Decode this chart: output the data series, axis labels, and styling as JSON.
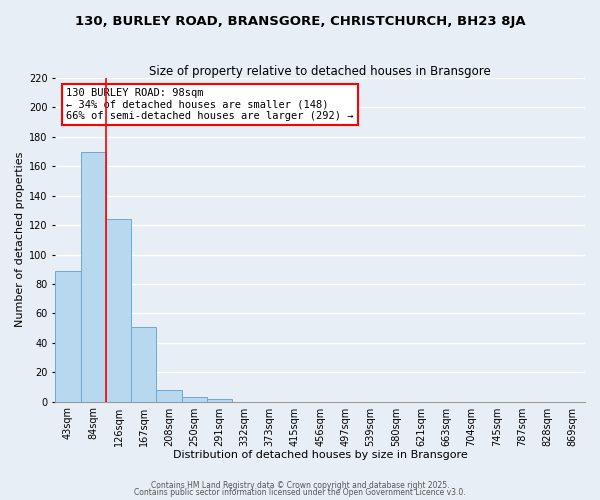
{
  "title": "130, BURLEY ROAD, BRANSGORE, CHRISTCHURCH, BH23 8JA",
  "subtitle": "Size of property relative to detached houses in Bransgore",
  "xlabel": "Distribution of detached houses by size in Bransgore",
  "ylabel": "Number of detached properties",
  "bar_labels": [
    "43sqm",
    "84sqm",
    "126sqm",
    "167sqm",
    "208sqm",
    "250sqm",
    "291sqm",
    "332sqm",
    "373sqm",
    "415sqm",
    "456sqm",
    "497sqm",
    "539sqm",
    "580sqm",
    "621sqm",
    "663sqm",
    "704sqm",
    "745sqm",
    "787sqm",
    "828sqm",
    "869sqm"
  ],
  "bar_values": [
    89,
    170,
    124,
    51,
    8,
    3,
    2,
    0,
    0,
    0,
    0,
    0,
    0,
    0,
    0,
    0,
    0,
    0,
    0,
    0,
    0
  ],
  "bar_color": "#b8d8f0",
  "bar_edge_color": "#6aaad4",
  "background_color": "#e8eef5",
  "grid_color": "#ffffff",
  "redline_x": 1.5,
  "annotation_line1": "130 BURLEY ROAD: 98sqm",
  "annotation_line2": "← 34% of detached houses are smaller (148)",
  "annotation_line3": "66% of semi-detached houses are larger (292) →",
  "annotation_box_color": "white",
  "annotation_box_edge": "red",
  "ylim": [
    0,
    220
  ],
  "yticks": [
    0,
    20,
    40,
    60,
    80,
    100,
    120,
    140,
    160,
    180,
    200,
    220
  ],
  "footer1": "Contains HM Land Registry data © Crown copyright and database right 2025.",
  "footer2": "Contains public sector information licensed under the Open Government Licence v3.0.",
  "title_fontsize": 9.5,
  "subtitle_fontsize": 8.5,
  "tick_fontsize": 7,
  "label_fontsize": 8,
  "annotation_fontsize": 7.5,
  "footer_fontsize": 5.5
}
